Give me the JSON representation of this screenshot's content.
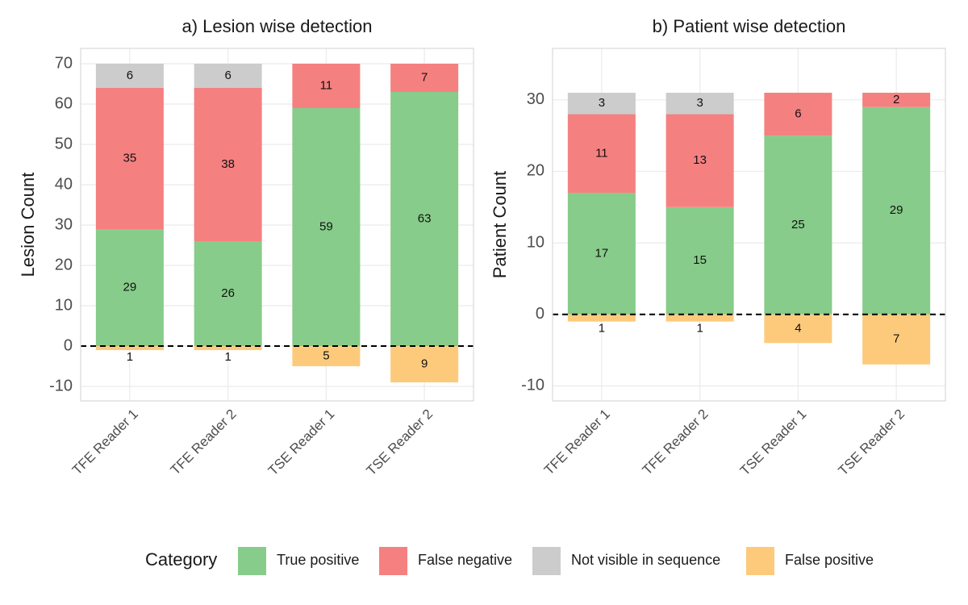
{
  "chart_data": [
    {
      "type": "stacked_bar",
      "title": "a) Lesion wise detection",
      "ylabel": "Lesion Count",
      "categories": [
        "TFE Reader 1",
        "TFE Reader 2",
        "TSE Reader 1",
        "TSE Reader 2"
      ],
      "series": [
        {
          "name": "True positive",
          "color": "#87cc8a",
          "values": [
            29,
            26,
            59,
            63
          ]
        },
        {
          "name": "False negative",
          "color": "#f58080",
          "values": [
            35,
            38,
            11,
            7
          ]
        },
        {
          "name": "Not visible in sequence",
          "color": "#cccccc",
          "values": [
            6,
            6,
            null,
            null
          ]
        },
        {
          "name": "False positive",
          "color": "#fdca7c",
          "values": [
            -1,
            -1,
            -5,
            -9
          ],
          "value_labels": [
            "1",
            "1",
            "5",
            "9"
          ]
        }
      ],
      "ylim": [
        -13.6,
        73.8
      ],
      "yticks": [
        -10,
        0,
        10,
        20,
        30,
        40,
        50,
        60,
        70
      ],
      "grid": true,
      "legend": {
        "title": "Category",
        "position": "bottom"
      }
    },
    {
      "type": "stacked_bar",
      "title": "b) Patient wise detection",
      "ylabel": "Patient Count",
      "categories": [
        "TFE Reader 1",
        "TFE Reader 2",
        "TSE Reader 1",
        "TSE Reader 2"
      ],
      "series": [
        {
          "name": "True positive",
          "color": "#87cc8a",
          "values": [
            17,
            15,
            25,
            29
          ]
        },
        {
          "name": "False negative",
          "color": "#f58080",
          "values": [
            11,
            13,
            6,
            2
          ]
        },
        {
          "name": "Not visible in sequence",
          "color": "#cccccc",
          "values": [
            3,
            3,
            null,
            null
          ]
        },
        {
          "name": "False positive",
          "color": "#fdca7c",
          "values": [
            -1,
            -1,
            -4,
            -7
          ],
          "value_labels": [
            "1",
            "1",
            "4",
            "7"
          ]
        }
      ],
      "ylim": [
        -12.1,
        37.2
      ],
      "yticks": [
        -10,
        0,
        10,
        20,
        30
      ],
      "grid": true
    }
  ]
}
